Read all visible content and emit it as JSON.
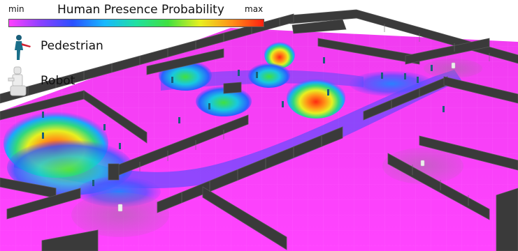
{
  "colorbar": {
    "title": "Human Presence Probability",
    "min_label": "min",
    "max_label": "max",
    "gradient_colors": [
      "#ff40ff",
      "#8a40ff",
      "#2a50ff",
      "#18b8ff",
      "#20e0a0",
      "#40e040",
      "#e8f020",
      "#ff9018",
      "#ff2010"
    ]
  },
  "legend": {
    "pedestrian_label": "Pedestrian",
    "robot_label": "Robot",
    "pedestrian_icon": "pedestrian-icon",
    "robot_icon": "robot-icon"
  },
  "colors": {
    "floor": "#ff40ff",
    "wall": "#3c3c3c",
    "wall_top": "#2a2a2a",
    "pedestrian": "#1a5f7a",
    "robot": "#e8e8e8"
  }
}
